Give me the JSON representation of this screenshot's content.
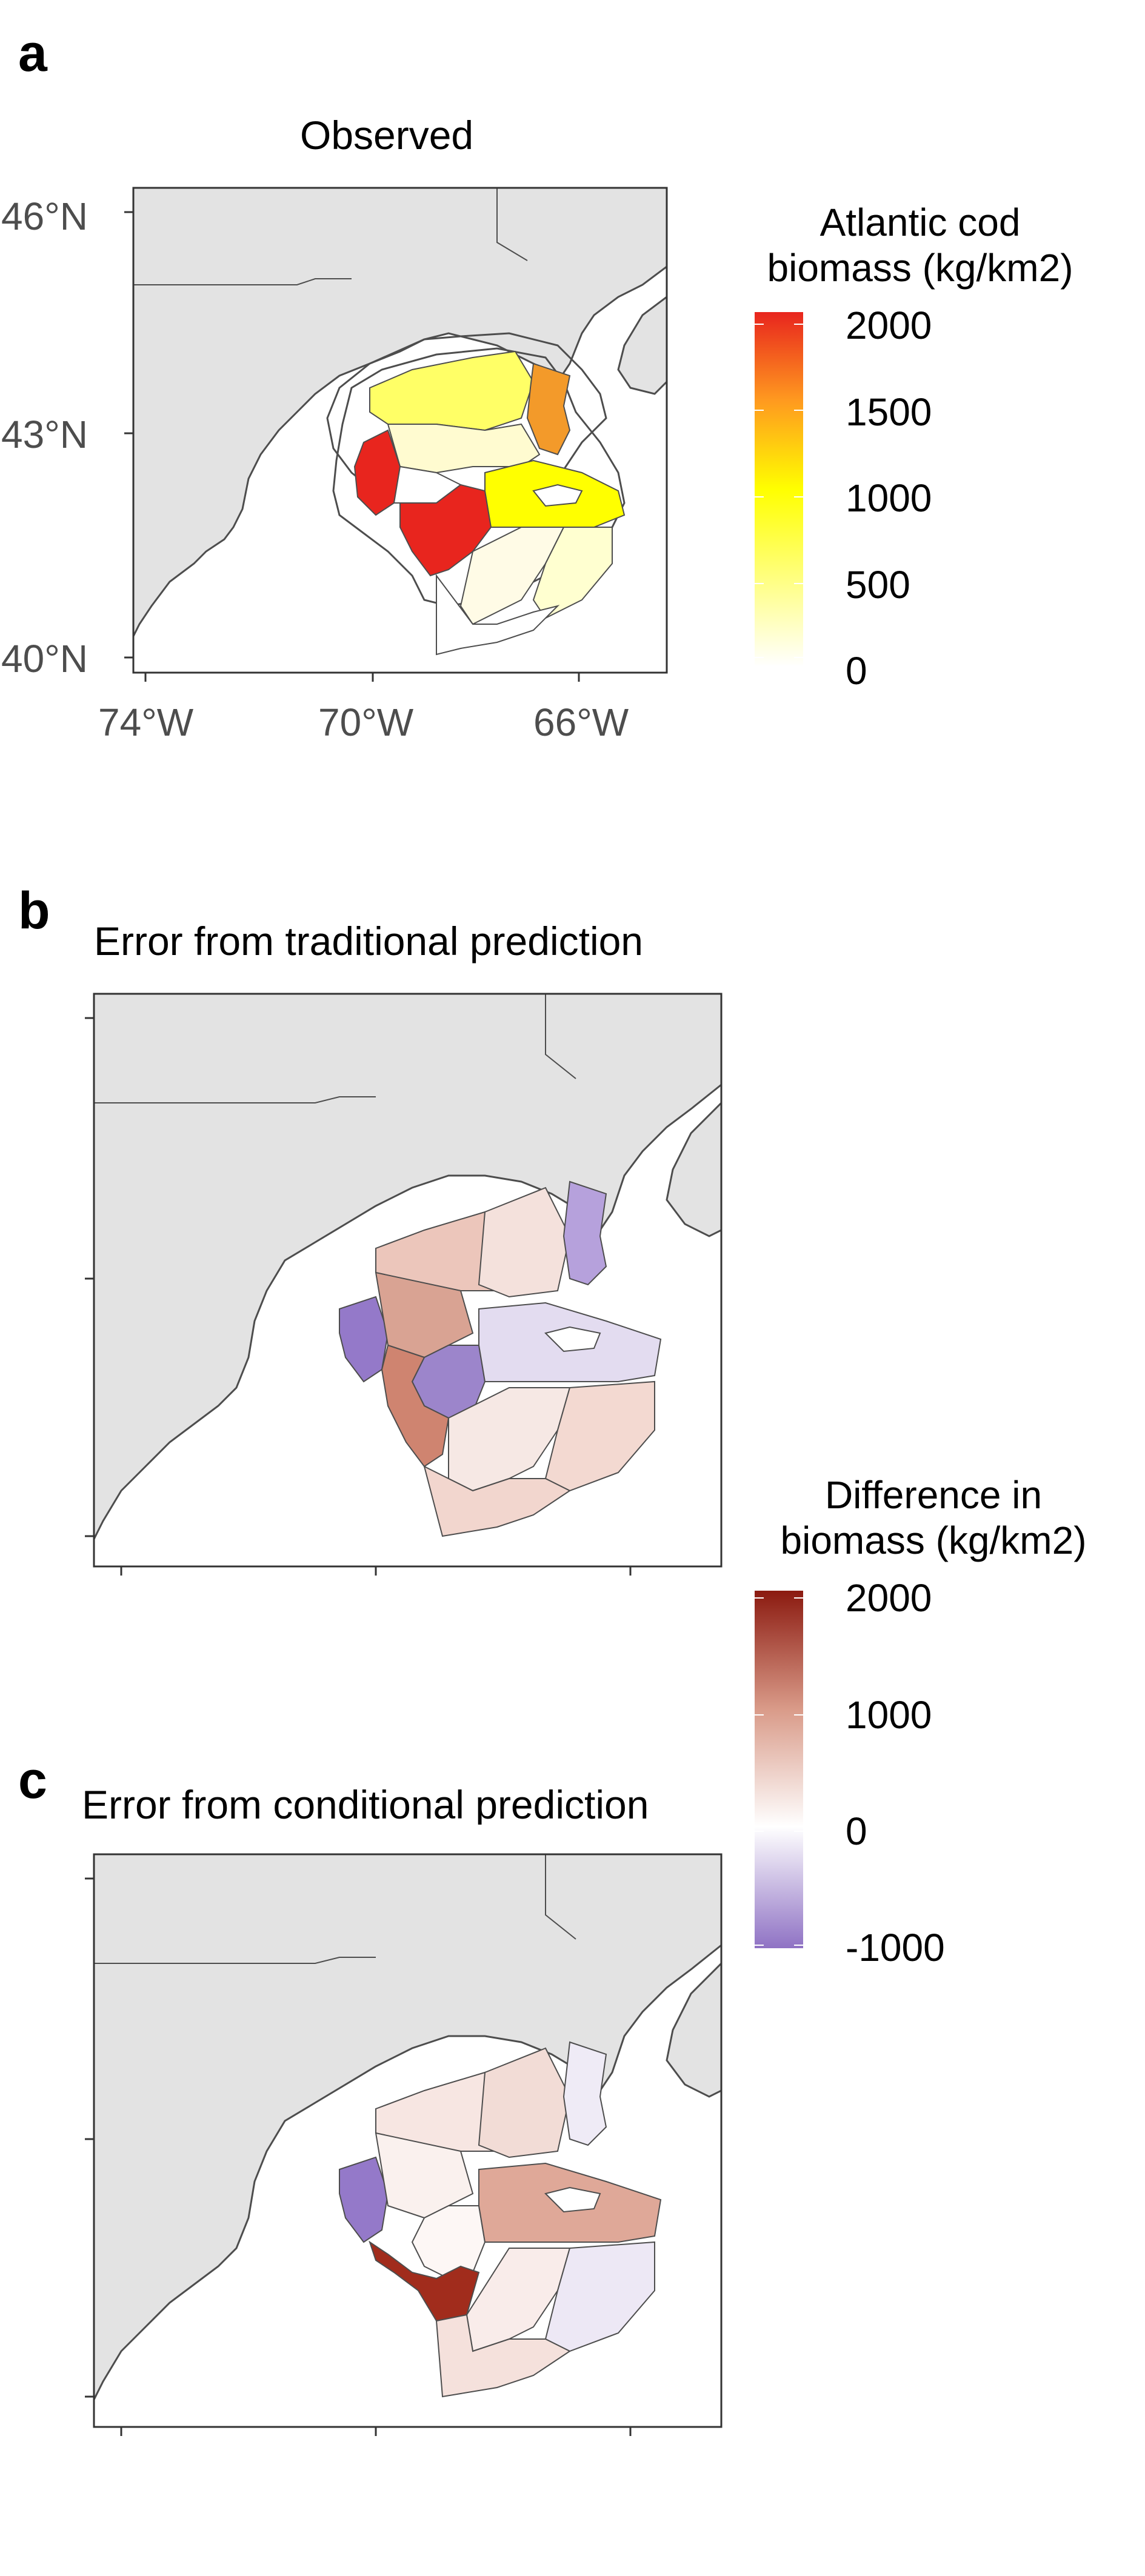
{
  "figure": {
    "panels": [
      {
        "letter": "a",
        "title": "Observed",
        "y_ticks": [
          "46°N",
          "43°N",
          "40°N"
        ],
        "x_ticks": [
          "74°W",
          "70°W",
          "66°W"
        ]
      },
      {
        "letter": "b",
        "title": "Error from traditional prediction"
      },
      {
        "letter": "c",
        "title": "Error from conditional prediction"
      }
    ],
    "legend_biomass": {
      "title_line1": "Atlantic cod",
      "title_line2": "biomass (kg/km2)",
      "labels": [
        "2000",
        "1500",
        "1000",
        "500",
        "0"
      ],
      "colors": [
        "#ffffff",
        "#ffff00",
        "#ff8c00",
        "#e8251e"
      ]
    },
    "legend_difference": {
      "title_line1": "Difference in",
      "title_line2": "biomass (kg/km2)",
      "labels": [
        "2000",
        "1000",
        "0",
        "-1000"
      ],
      "colors": [
        "#8b1a10",
        "#d99a88",
        "#ffffff",
        "#8f72c4"
      ]
    },
    "colors": {
      "land": "#e3e3e3",
      "coast": "#4d4d4d",
      "frame": "#333333"
    }
  }
}
